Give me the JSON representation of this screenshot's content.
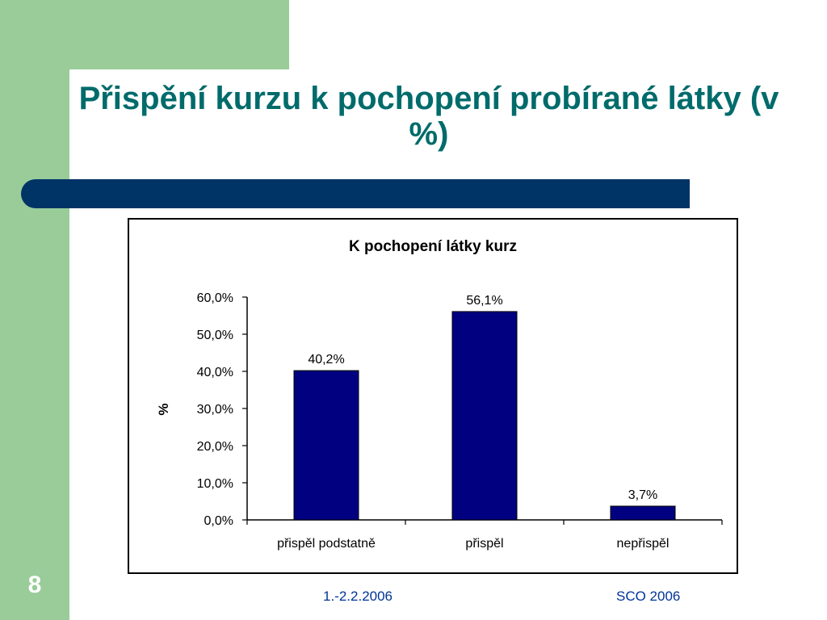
{
  "slide": {
    "title": "Přispění kurzu k pochopení probírané látky (v %)",
    "number": "8",
    "footer_date": "1.-2.2.2006",
    "footer_org": "SCO 2006"
  },
  "colors": {
    "green": "#99cc99",
    "title_text": "#006b6b",
    "bar_band": "#003366",
    "bars": "#000080",
    "footer_text": "#003399"
  },
  "chart_data": {
    "type": "bar",
    "title": "K pochopení látky kurz",
    "ylabel": "%",
    "xlabel": "",
    "categories": [
      "přispěl podstatně",
      "přispěl",
      "nepřispěl"
    ],
    "values": [
      40.2,
      56.1,
      3.7
    ],
    "data_labels": [
      "40,2%",
      "56,1%",
      "3,7%"
    ],
    "yticks": [
      0,
      10,
      20,
      30,
      40,
      50,
      60
    ],
    "ytick_labels": [
      "0,0%",
      "10,0%",
      "20,0%",
      "30,0%",
      "40,0%",
      "50,0%",
      "60,0%"
    ],
    "ylim": [
      0,
      60
    ],
    "grid": false,
    "legend": false
  }
}
